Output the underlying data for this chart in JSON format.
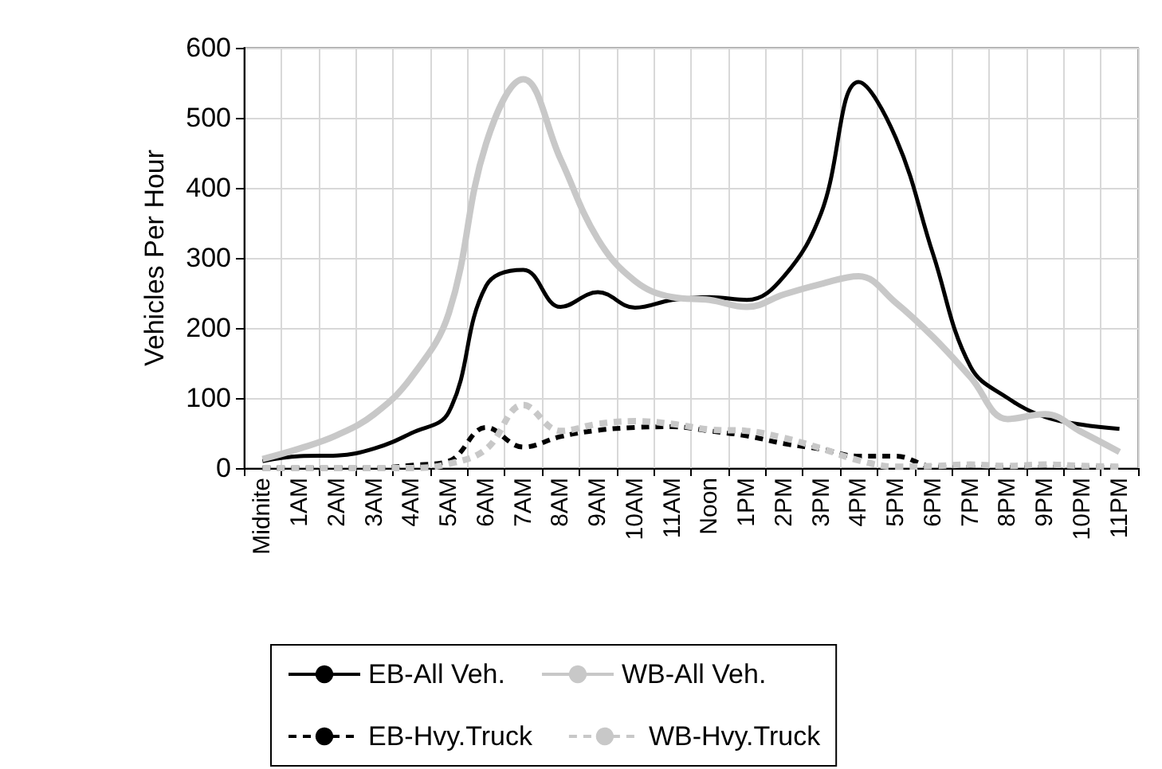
{
  "chart_data": {
    "type": "line",
    "ylabel": "Vehicles Per Hour",
    "categories": [
      "Midnite",
      "1AM",
      "2AM",
      "3AM",
      "4AM",
      "5AM",
      "6AM",
      "7AM",
      "8AM",
      "9AM",
      "10AM",
      "11AM",
      "Noon",
      "1PM",
      "2PM",
      "3PM",
      "4PM",
      "5PM",
      "6PM",
      "7PM",
      "8PM",
      "9PM",
      "10PM",
      "11PM"
    ],
    "series": [
      {
        "name": "EB-All Veh.",
        "color": "#000000",
        "line_style": "solid",
        "values": [
          10,
          17,
          18,
          28,
          50,
          80,
          260,
          283,
          230,
          251,
          229,
          240,
          244,
          240,
          274,
          365,
          551,
          471,
          305,
          145,
          100,
          73,
          62,
          56
        ]
      },
      {
        "name": "WB-All Veh.",
        "color": "#c8c8c8",
        "line_style": "solid",
        "values": [
          13,
          28,
          47,
          77,
          130,
          221,
          463,
          555,
          441,
          327,
          267,
          244,
          240,
          230,
          248,
          263,
          274,
          236,
          187,
          130,
          70,
          77,
          51,
          23
        ]
      },
      {
        "name": "EB-Hvy.Truck",
        "color": "#000000",
        "line_style": "dashed",
        "values": [
          0,
          0,
          0,
          0,
          4,
          10,
          58,
          30,
          45,
          54,
          58,
          59,
          53,
          46,
          35,
          27,
          17,
          17,
          2,
          1,
          1,
          1,
          1,
          1
        ]
      },
      {
        "name": "WB-Hvy.Truck",
        "color": "#c8c8c8",
        "line_style": "dashed",
        "values": [
          0,
          0,
          0,
          0,
          0,
          6,
          27,
          90,
          53,
          63,
          67,
          63,
          55,
          53,
          43,
          28,
          11,
          2,
          3,
          5,
          3,
          5,
          3,
          2
        ]
      }
    ],
    "ylim": [
      0,
      600
    ],
    "yticks": [
      0,
      100,
      200,
      300,
      400,
      500,
      600
    ],
    "grid": true,
    "legend": "bottom",
    "marker": "none"
  }
}
